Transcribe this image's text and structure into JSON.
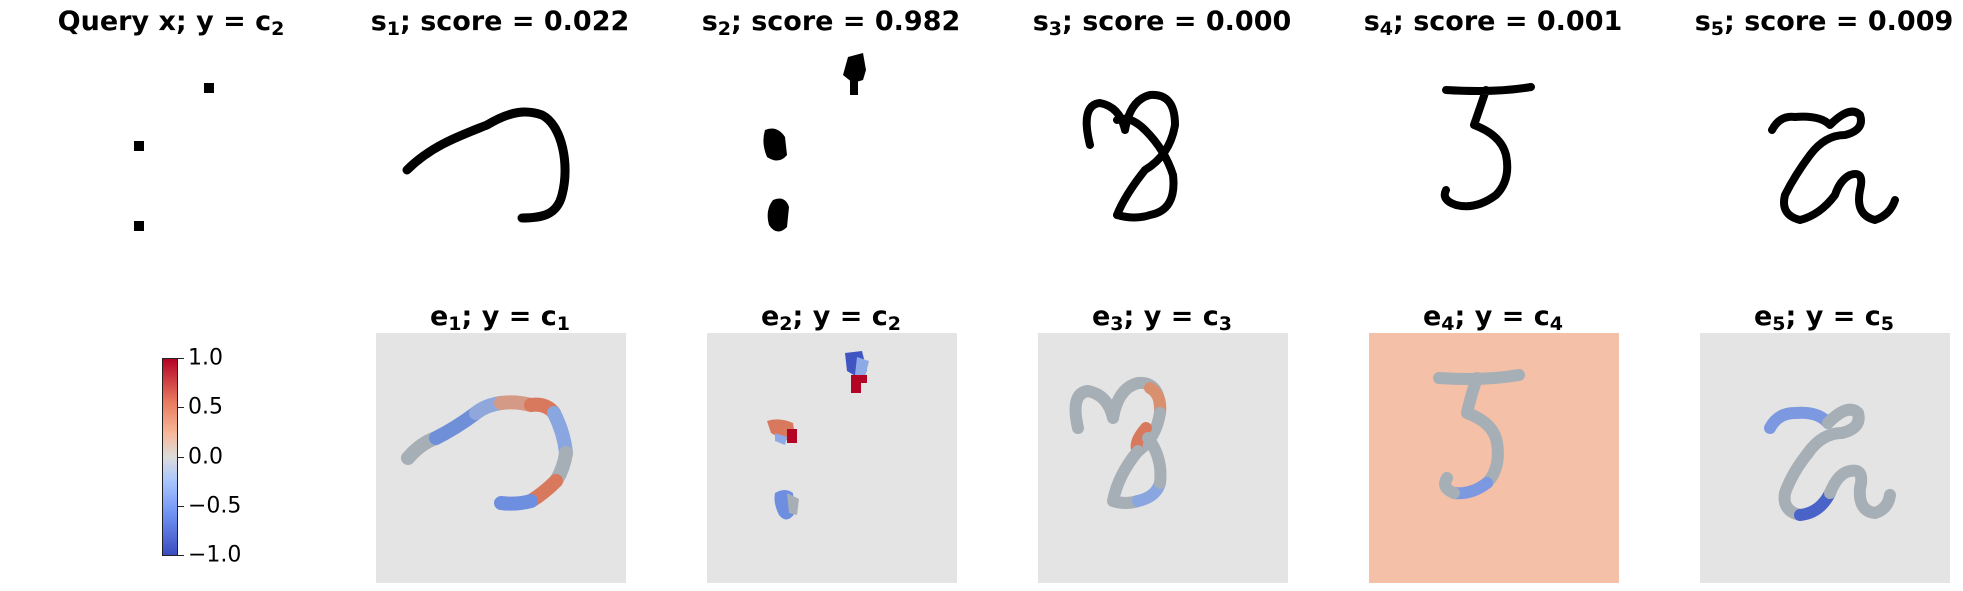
{
  "query": {
    "title_main": "Query x; y = c",
    "title_sub": "2"
  },
  "samples": [
    {
      "title_var": "s",
      "title_idx": "1",
      "title_rest": "; score = 0.022"
    },
    {
      "title_var": "s",
      "title_idx": "2",
      "title_rest": "; score = 0.982"
    },
    {
      "title_var": "s",
      "title_idx": "3",
      "title_rest": "; score = 0.000"
    },
    {
      "title_var": "s",
      "title_idx": "4",
      "title_rest": "; score = 0.001"
    },
    {
      "title_var": "s",
      "title_idx": "5",
      "title_rest": "; score = 0.009"
    }
  ],
  "explanations": [
    {
      "title_var": "e",
      "title_idx": "1",
      "title_mid": "; y = c",
      "title_cidx": "1"
    },
    {
      "title_var": "e",
      "title_idx": "2",
      "title_mid": "; y = c",
      "title_cidx": "2"
    },
    {
      "title_var": "e",
      "title_idx": "3",
      "title_mid": "; y = c",
      "title_cidx": "3"
    },
    {
      "title_var": "e",
      "title_idx": "4",
      "title_mid": "; y = c",
      "title_cidx": "4"
    },
    {
      "title_var": "e",
      "title_idx": "5",
      "title_mid": "; y = c",
      "title_cidx": "5"
    }
  ],
  "colorbar": {
    "ticks": [
      "1.0",
      "0.5",
      "0.0",
      "−0.5",
      "−1.0"
    ],
    "colormap": "coolwarm",
    "range": [
      -1.0,
      1.0
    ]
  },
  "colors": {
    "warm": "#b40426",
    "cool": "#3b4cc0",
    "neutral": "#a9b3bd",
    "background": "#e4e4e4"
  }
}
